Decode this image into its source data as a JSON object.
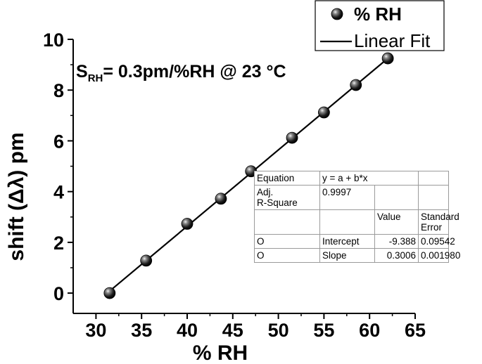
{
  "chart_data": {
    "type": "scatter",
    "xlabel": "% RH",
    "ylabel": "shift (Δλ) pm",
    "xlim": [
      27.5,
      65
    ],
    "ylim": [
      -0.8,
      10
    ],
    "x_ticks": [
      30,
      35,
      40,
      45,
      50,
      55,
      60,
      65
    ],
    "y_ticks": [
      0,
      2,
      4,
      6,
      8,
      10
    ],
    "grid": false,
    "legend_position": "top-right",
    "series": [
      {
        "name": "% RH",
        "kind": "scatter",
        "color": "#000000",
        "x": [
          31.5,
          35.5,
          40.0,
          43.7,
          47.0,
          51.5,
          55.0,
          58.5,
          62.0
        ],
        "y": [
          0.0,
          1.28,
          2.73,
          3.72,
          4.8,
          6.12,
          7.12,
          8.2,
          9.25
        ]
      },
      {
        "name": "Linear Fit",
        "kind": "line",
        "color": "#000000",
        "intercept": -9.388,
        "slope": 0.3006,
        "x_range": [
          31.5,
          62.0
        ]
      }
    ],
    "annotation": {
      "symbol": "S",
      "subscript": "RH",
      "text": "= 0.3pm/%RH @ 23 °C"
    },
    "fit_table": {
      "equation_label": "Equation",
      "equation": "y = a + b*x",
      "adj_r_square_label_1": "Adj.",
      "adj_r_square_label_2": "R-Square",
      "adj_r_square": "0.9997",
      "value_header": "Value",
      "std_error_header_1": "Standard",
      "std_error_header_2": "Error",
      "rows": [
        {
          "series": "O",
          "param": "Intercept",
          "value": "-9.388",
          "error": "0.09542"
        },
        {
          "series": "O",
          "param": "Slope",
          "value": "0.3006",
          "error": "0.001980"
        }
      ]
    }
  }
}
